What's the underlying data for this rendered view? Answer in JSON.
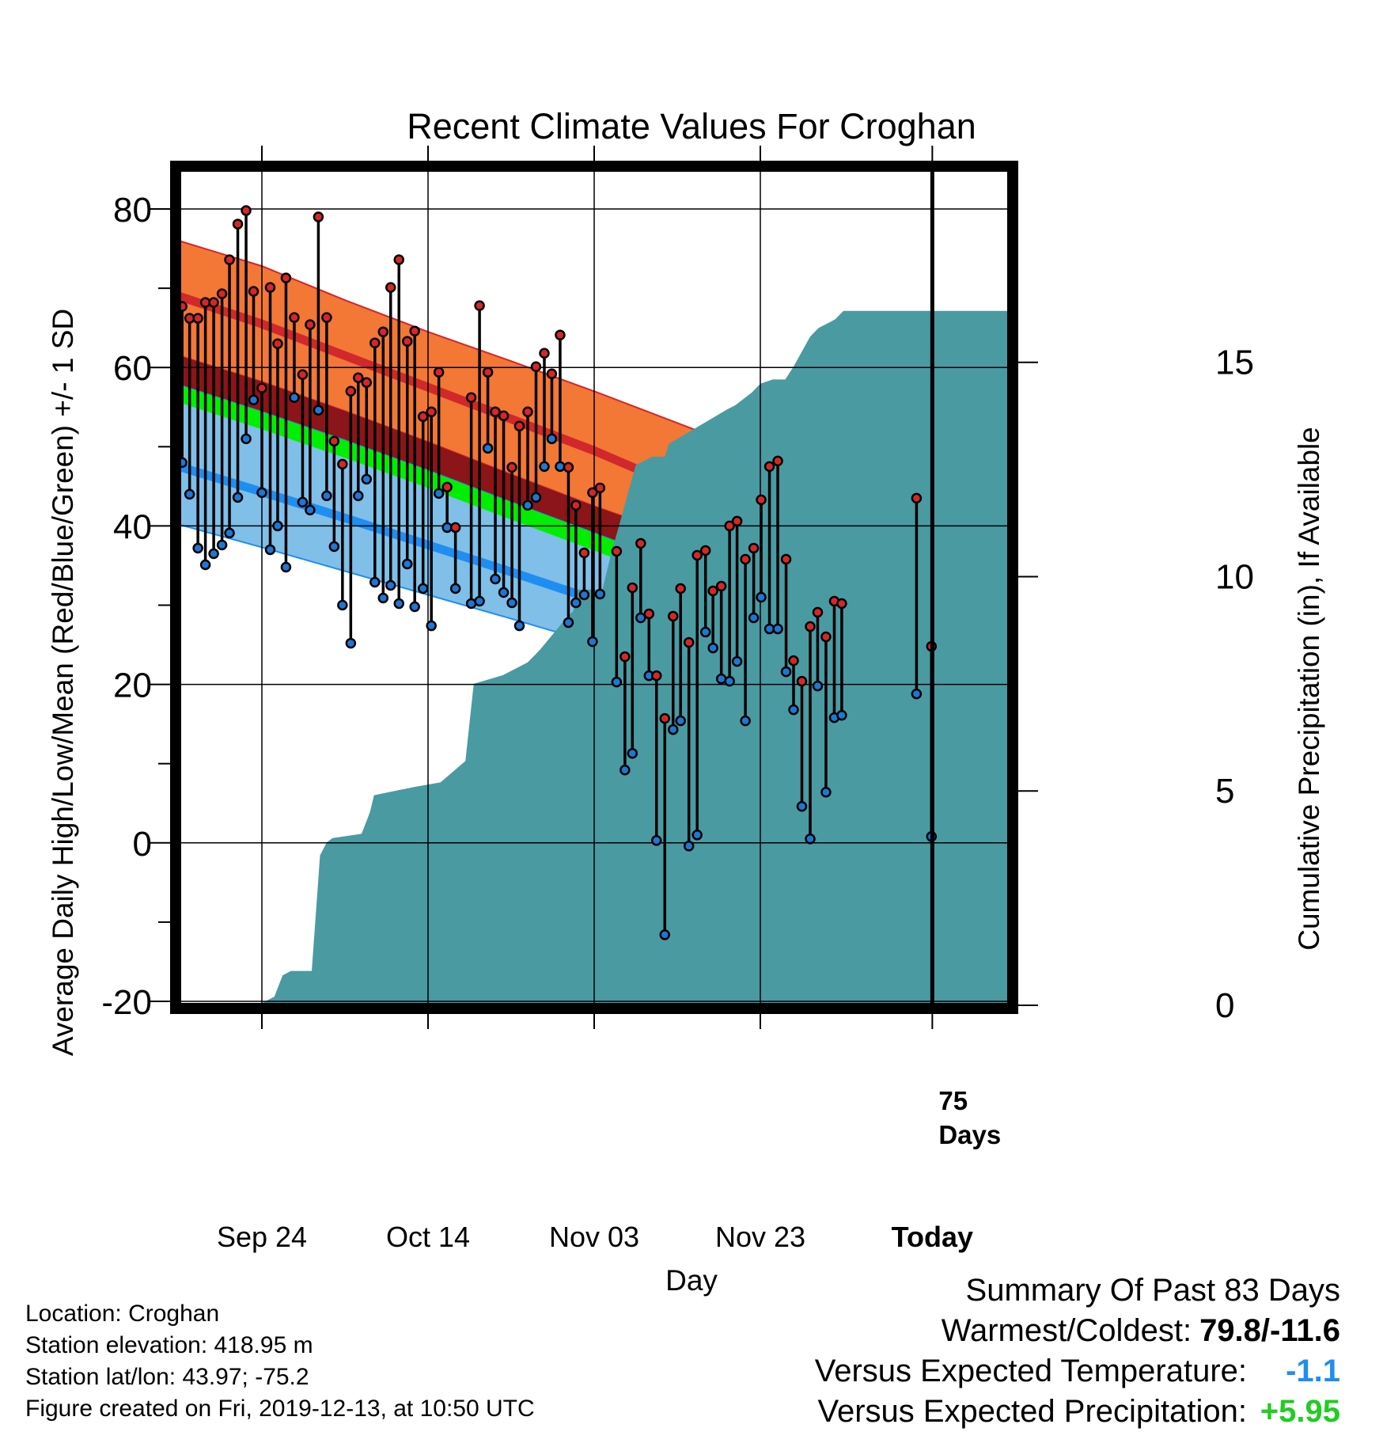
{
  "chart_data": {
    "type": "line",
    "title": "Recent Climate Values For Croghan",
    "xlabel": "Day",
    "ylabel": "Average Daily High/Low/Mean (Red/Blue/Green) +/- 1 SD",
    "y2label": "Cumulative Precipitation (in), If Available",
    "x_tick_labels": [
      "Sep 24",
      "Oct 14",
      "Nov 03",
      "Nov 23",
      "Today"
    ],
    "y_ticks": [
      -20,
      0,
      20,
      40,
      60,
      80
    ],
    "y2_ticks": [
      0,
      5,
      10,
      15
    ],
    "ylim": [
      -20.5,
      85
    ],
    "y2lim": [
      0,
      19.5
    ],
    "xlim": [
      0,
      100
    ],
    "today_day": 90.7,
    "today_label": [
      "75",
      "Days"
    ],
    "grid": true,
    "colors": {
      "high_band": "#f37735",
      "high_line": "#d1282b",
      "low_band": "#7fbfe8",
      "low_line": "#1f8ef1",
      "mean_band": "#00ee00",
      "overlap_band": "#8b1519",
      "precip": "#4a9aa2",
      "high_marker": "#d62728",
      "low_marker": "#1f77d4"
    },
    "normals": {
      "day": [
        0,
        10,
        20,
        30,
        40,
        50,
        60,
        70,
        80,
        90,
        100
      ],
      "high_plus_sd": [
        76.0,
        72.8,
        68.5,
        64.5,
        60.8,
        57.0,
        53.0,
        49.0,
        45.0,
        42.0,
        39.8
      ],
      "high_mean": [
        69.0,
        65.5,
        61.5,
        57.5,
        53.5,
        49.5,
        45.0,
        40.5,
        36.3,
        32.0,
        28.6
      ],
      "high_minus_sd": [
        61.5,
        58.2,
        54.5,
        50.6,
        46.5,
        42.5,
        38.8,
        36.5,
        33.5,
        29.5,
        25.8
      ],
      "mean_plus_sd": [
        57.8,
        54.4,
        50.8,
        47.0,
        43.0,
        39.1,
        35.1,
        31.1,
        27.1,
        22.8,
        19.5
      ],
      "mean_minus_sd": [
        55.6,
        52.2,
        48.6,
        44.8,
        40.8,
        36.9,
        32.9,
        28.9,
        24.9,
        20.6,
        17.8
      ],
      "low_mean": [
        47.5,
        44.3,
        41.0,
        37.6,
        34.2,
        30.7,
        27.0,
        23.2,
        19.2,
        15.2,
        12.3
      ],
      "low_minus_sd": [
        40.2,
        37.3,
        34.3,
        31.3,
        28.3,
        25.2,
        21.5,
        16.5,
        11.2,
        11.8,
        12.0
      ]
    },
    "observations": {
      "day": [
        0.4,
        1.3,
        2.3,
        3.2,
        4.2,
        5.2,
        6.1,
        7.1,
        8.1,
        9.0,
        10.0,
        11.0,
        11.9,
        12.9,
        13.9,
        14.9,
        15.8,
        16.8,
        17.8,
        18.7,
        19.7,
        20.7,
        21.6,
        22.6,
        23.6,
        24.6,
        25.5,
        26.5,
        27.5,
        28.4,
        29.4,
        30.4,
        31.3,
        32.3,
        33.3,
        34.3,
        35.2,
        36.2,
        37.2,
        38.1,
        39.1,
        40.1,
        41.0,
        42.0,
        43.0,
        44.0,
        44.9,
        45.9,
        46.9,
        47.8,
        48.8,
        49.8,
        50.7,
        51.7,
        52.7,
        53.7,
        54.6,
        55.6,
        56.6,
        57.5,
        58.5,
        59.5,
        60.4,
        61.4,
        62.4,
        63.4,
        64.3,
        65.3,
        66.3,
        67.2,
        68.2,
        69.2,
        70.1,
        71.1,
        72.1,
        73.1,
        74.0,
        75.0,
        76.0,
        76.9,
        77.9,
        78.9,
        79.8,
        80.8,
        81.8,
        82.8,
        83.7,
        84.7,
        85.7,
        86.6,
        88.8,
        90.6
      ],
      "high": [
        67.7,
        66.2,
        66.2,
        68.2,
        68.2,
        69.3,
        73.6,
        78.1,
        79.8,
        69.6,
        57.4,
        70.1,
        63.0,
        71.3,
        66.3,
        59.1,
        65.4,
        79.0,
        66.3,
        50.7,
        47.8,
        57.0,
        58.7,
        58.1,
        63.1,
        64.5,
        70.1,
        73.6,
        63.3,
        64.6,
        53.8,
        54.4,
        59.4,
        44.9,
        39.8,
        null,
        56.2,
        67.8,
        59.4,
        54.4,
        53.9,
        47.4,
        52.6,
        54.4,
        60.1,
        61.8,
        59.2,
        64.1,
        47.4,
        42.6,
        36.6,
        44.2,
        44.8,
        null,
        36.8,
        23.5,
        32.2,
        37.8,
        28.9,
        21.1,
        15.7,
        28.6,
        32.1,
        25.3,
        36.3,
        36.9,
        31.8,
        32.4,
        40.0,
        40.6,
        35.8,
        37.2,
        43.3,
        47.5,
        48.2,
        35.8,
        23.0,
        20.4,
        27.3,
        29.1,
        26.0,
        30.5,
        30.2,
        null,
        null,
        null,
        null,
        null,
        null,
        null,
        43.5,
        24.8
      ],
      "low": [
        48.0,
        44.0,
        37.2,
        35.1,
        36.5,
        37.6,
        39.1,
        43.6,
        51.0,
        55.9,
        44.2,
        37.0,
        40.0,
        34.8,
        56.2,
        43.0,
        42.0,
        54.6,
        43.8,
        37.4,
        30.0,
        25.2,
        43.8,
        45.9,
        32.9,
        30.9,
        32.5,
        30.2,
        35.2,
        29.8,
        32.1,
        27.4,
        44.1,
        39.8,
        32.1,
        null,
        30.2,
        30.5,
        49.8,
        33.3,
        31.6,
        30.3,
        27.4,
        42.6,
        43.6,
        47.5,
        51.0,
        47.5,
        27.8,
        30.3,
        31.3,
        25.4,
        31.4,
        null,
        20.3,
        9.2,
        11.3,
        28.4,
        21.1,
        0.3,
        -11.6,
        14.3,
        15.4,
        -0.4,
        1.0,
        26.6,
        24.6,
        20.7,
        20.4,
        22.9,
        15.4,
        28.4,
        31.0,
        27.0,
        27.0,
        21.6,
        16.8,
        4.6,
        0.5,
        19.8,
        6.4,
        15.8,
        16.1,
        null,
        null,
        null,
        null,
        null,
        null,
        null,
        18.8,
        0.8
      ]
    },
    "precip_cumulative": {
      "day": [
        0,
        9.5,
        11.5,
        12.5,
        13.5,
        16.0,
        17.0,
        17.8,
        18.5,
        22.0,
        23.0,
        23.5,
        28.5,
        31.5,
        34.5,
        35.5,
        39.0,
        42.0,
        43.0,
        43.5,
        46.5,
        47.5,
        48.0,
        51.0,
        52.0,
        55.0,
        57.0,
        58.5,
        59.0,
        66.0,
        67.0,
        69.0,
        70.0,
        71.5,
        73.0,
        74.0,
        76.0,
        77.0,
        78.0,
        79.0,
        80.0,
        100.0
      ],
      "inches": [
        0,
        0,
        0.2,
        0.7,
        0.8,
        0.8,
        3.5,
        3.8,
        3.9,
        4.0,
        4.5,
        4.9,
        5.1,
        5.2,
        5.7,
        7.5,
        7.7,
        8.0,
        8.2,
        8.3,
        9.0,
        9.2,
        9.7,
        9.7,
        10.5,
        12.6,
        12.8,
        12.8,
        13.1,
        13.9,
        14.0,
        14.3,
        14.5,
        14.6,
        14.6,
        14.9,
        15.6,
        15.8,
        15.9,
        16.0,
        16.2,
        16.2
      ]
    }
  },
  "footer": {
    "location": "Location: Croghan",
    "elevation": "Station elevation: 418.95 m",
    "latlon": "Station lat/lon: 43.97; -75.2",
    "created": "Figure created on Fri, 2019-12-13, at 10:50 UTC"
  },
  "summary": {
    "title": "Summary Of Past 83 Days",
    "warm_cold_label": "Warmest/Coldest:",
    "warm_cold_value": "79.8/-11.6",
    "temp_label": "Versus Expected Temperature:",
    "temp_value": "-1.1",
    "temp_color": "#1f8ef1",
    "precip_label": "Versus Expected Precipitation:",
    "precip_value": "+5.95",
    "precip_color": "#22cc22"
  }
}
